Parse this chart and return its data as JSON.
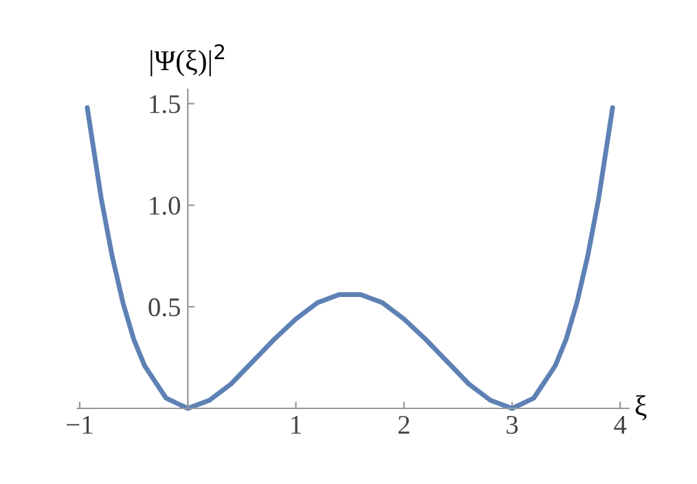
{
  "chart_data": {
    "type": "line",
    "xlabel": "ξ",
    "ylabel": "|Ψ(ξ)|$^{2}$",
    "x": [
      -0.93,
      -0.8,
      -0.7,
      -0.6,
      -0.5,
      -0.4,
      -0.2,
      0,
      0.2,
      0.4,
      0.6,
      0.8,
      1.0,
      1.2,
      1.4,
      1.5,
      1.6,
      1.8,
      2.0,
      2.2,
      2.4,
      2.6,
      2.8,
      3.0,
      3.2,
      3.4,
      3.5,
      3.6,
      3.7,
      3.8,
      3.93
    ],
    "series": [
      {
        "color": "#5e81b5",
        "values": [
          1.48,
          1.03,
          0.75,
          0.52,
          0.34,
          0.21,
          0.05,
          0,
          0.04,
          0.12,
          0.23,
          0.34,
          0.44,
          0.52,
          0.56,
          0.56,
          0.56,
          0.52,
          0.44,
          0.34,
          0.23,
          0.12,
          0.04,
          0,
          0.05,
          0.21,
          0.34,
          0.52,
          0.75,
          1.03,
          1.48
        ]
      }
    ],
    "xlim": [
      -1.02,
      4.08
    ],
    "ylim": [
      0,
      1.57
    ],
    "xticks": [
      {
        "value": -1,
        "label": "−1"
      },
      {
        "value": 0,
        "label": null
      },
      1,
      2,
      3,
      4
    ],
    "yticks": [
      0.5,
      {
        "value": 1,
        "label": "1.0"
      },
      1.5
    ],
    "grid": false,
    "legend": false,
    "marker": "none",
    "line_style": "solid"
  }
}
